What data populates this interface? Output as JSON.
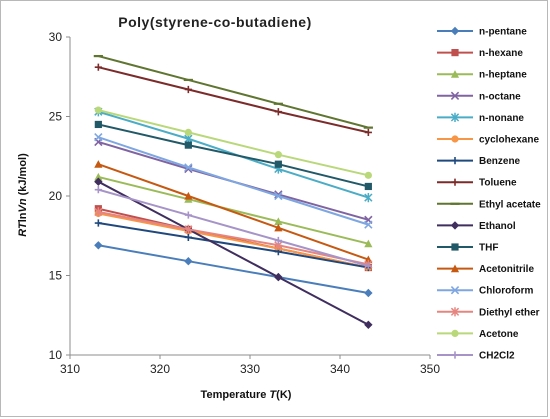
{
  "chart_data": {
    "type": "line",
    "title": "Poly(styrene-co-butadiene)",
    "xlabel_parts": [
      "Temperature ",
      "T",
      "(K)"
    ],
    "ylabel_parts": [
      "RT",
      "ln",
      "Vn",
      " (kJ/mol)"
    ],
    "xlim": [
      310,
      350
    ],
    "ylim": [
      10,
      30
    ],
    "xticks": [
      310,
      320,
      330,
      340,
      350
    ],
    "yticks": [
      10,
      15,
      20,
      25,
      30
    ],
    "x": [
      313.15,
      323.15,
      333.15,
      343.15
    ],
    "grid": "none",
    "legend_position": "right",
    "series": [
      {
        "name": "n-pentane",
        "color": "#4a7ebb",
        "marker": "diamond",
        "values": [
          16.9,
          15.9,
          14.9,
          13.9
        ]
      },
      {
        "name": "n-hexane",
        "color": "#c0504d",
        "marker": "square",
        "values": [
          19.2,
          17.9,
          16.7,
          15.5
        ]
      },
      {
        "name": "n-heptane",
        "color": "#9bbb59",
        "marker": "triangle",
        "values": [
          21.2,
          19.8,
          18.4,
          17.0
        ]
      },
      {
        "name": "n-octane",
        "color": "#8064a2",
        "marker": "x",
        "values": [
          23.4,
          21.7,
          20.1,
          18.5
        ]
      },
      {
        "name": "n-nonane",
        "color": "#4bacc6",
        "marker": "star",
        "values": [
          25.3,
          23.6,
          21.7,
          19.9
        ]
      },
      {
        "name": "cyclohexane",
        "color": "#f79646",
        "marker": "circle",
        "values": [
          18.9,
          17.8,
          16.7,
          15.5
        ]
      },
      {
        "name": "Benzene",
        "color": "#1f497d",
        "marker": "plus",
        "values": [
          18.3,
          17.4,
          16.5,
          15.5
        ]
      },
      {
        "name": "Toluene",
        "color": "#7b2c2a",
        "marker": "plus",
        "values": [
          28.1,
          26.7,
          25.3,
          24.0
        ]
      },
      {
        "name": "Ethyl acetate",
        "color": "#5f7530",
        "marker": "dash",
        "values": [
          28.8,
          27.3,
          25.8,
          24.3
        ]
      },
      {
        "name": "Ethanol",
        "color": "#3f2e5e",
        "marker": "diamond",
        "values": [
          20.9,
          17.9,
          14.9,
          11.9
        ]
      },
      {
        "name": "THF",
        "color": "#215968",
        "marker": "square",
        "values": [
          24.5,
          23.2,
          22.0,
          20.6
        ]
      },
      {
        "name": "Acetonitrile",
        "color": "#c65911",
        "marker": "triangle",
        "values": [
          22.0,
          20.0,
          18.0,
          16.0
        ]
      },
      {
        "name": "Chloroform",
        "color": "#7ea6e0",
        "marker": "x",
        "values": [
          23.7,
          21.8,
          20.0,
          18.2
        ]
      },
      {
        "name": "Diethyl ether",
        "color": "#e6857f",
        "marker": "star",
        "values": [
          19.0,
          17.9,
          16.9,
          15.7
        ]
      },
      {
        "name": "Acetone",
        "color": "#b9d879",
        "marker": "circle",
        "values": [
          25.4,
          24.0,
          22.6,
          21.3
        ]
      },
      {
        "name": "CH2Cl2",
        "color": "#a693c8",
        "marker": "plus",
        "values": [
          20.4,
          18.8,
          17.2,
          15.6
        ]
      }
    ]
  }
}
